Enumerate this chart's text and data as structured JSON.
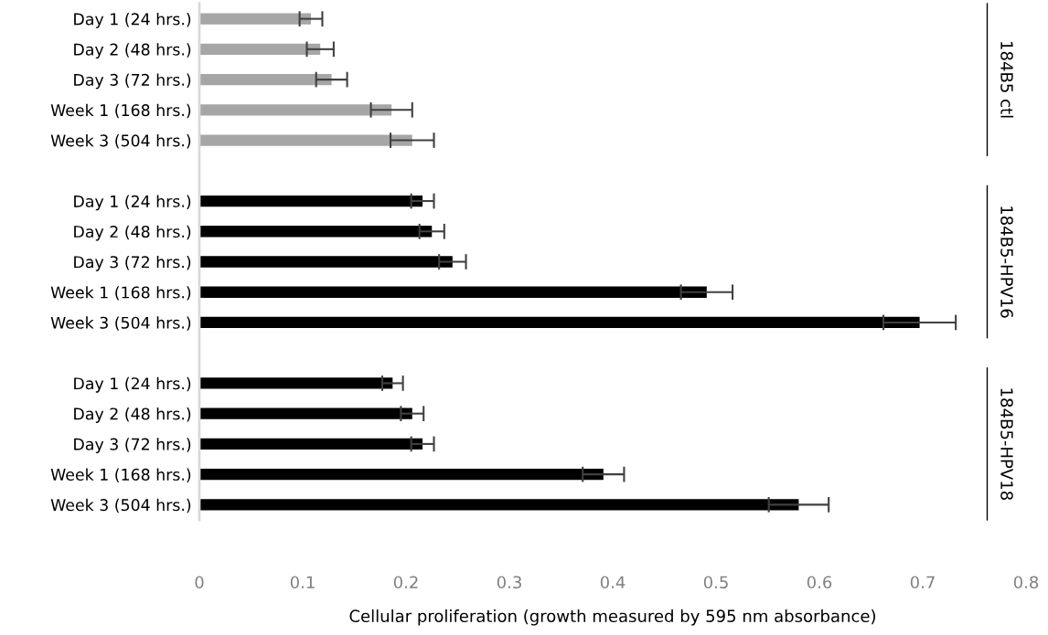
{
  "chart_data": {
    "type": "bar",
    "orientation": "horizontal",
    "xlabel": "Cellular proliferation (growth measured by 595 nm absorbance)",
    "categories": [
      "Day 1 (24 hrs.)",
      "Day 2 (48 hrs.)",
      "Day 3 (72 hrs.)",
      "Week 1 (168 hrs.)",
      "Week 3 (504 hrs.)",
      null,
      "Day 1 (24 hrs.)",
      "Day 2 (48 hrs.)",
      "Day 3 (72 hrs.)",
      "Week 1 (168 hrs.)",
      "Week 3 (504 hrs.)",
      null,
      "Day 1 (24 hrs.)",
      "Day 2 (48 hrs.)",
      "Day 3 (72 hrs.)",
      "Week 1 (168 hrs.)",
      "Week 3 (504 hrs.)"
    ],
    "values": [
      0.108,
      0.117,
      0.128,
      0.186,
      0.206,
      null,
      0.216,
      0.225,
      0.245,
      0.491,
      0.697,
      null,
      0.187,
      0.206,
      0.216,
      0.391,
      0.58
    ],
    "errors": [
      0.011,
      0.013,
      0.015,
      0.02,
      0.021,
      null,
      0.011,
      0.012,
      0.013,
      0.025,
      0.035,
      null,
      0.01,
      0.011,
      0.011,
      0.02,
      0.029
    ],
    "colors": [
      "#a6a6a6",
      "#a6a6a6",
      "#a6a6a6",
      "#a6a6a6",
      "#a6a6a6",
      null,
      "#000000",
      "#000000",
      "#000000",
      "#000000",
      "#000000",
      null,
      "#000000",
      "#000000",
      "#000000",
      "#000000",
      "#000000"
    ],
    "xlim": [
      0,
      0.8
    ],
    "xticks": [
      0,
      0.1,
      0.2,
      0.3,
      0.4,
      0.5,
      0.6,
      0.7,
      0.8
    ],
    "annotations": [
      "184B5 ctl",
      "184B5-HPV16",
      "184B5-HPV18"
    ],
    "grid": false,
    "legend": false
  }
}
